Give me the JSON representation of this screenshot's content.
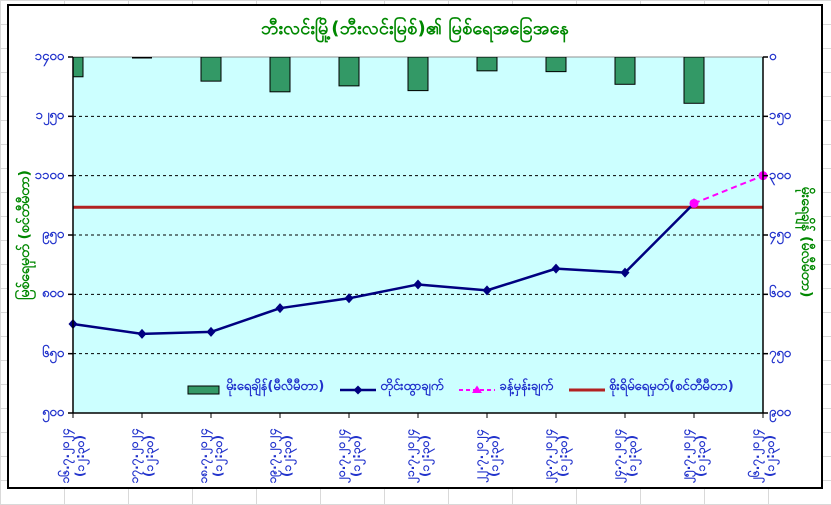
{
  "chart_data": {
    "type": "combo",
    "title": "ဘီးလင်းမြို့(ဘီးလင်းမြစ်)၏ မြစ်ရေအခြေအနေ",
    "title_meaning": "Bilin Town (Bilin River) river water situation",
    "plot_bg": "#CCFFFF",
    "grid": "horizontal-dashed",
    "legend_position": "bottom-inside",
    "categories": [
      {
        "date": "၁၆.၇.၂၀၂၄",
        "time": "(၁၂:၃၀)",
        "latin": "16.7.2024 (12:30)"
      },
      {
        "date": "၁၇.၇.၂၀၂၄",
        "time": "(၁၂:၃၀)",
        "latin": "17.7.2024 (12:30)"
      },
      {
        "date": "၁၈.၇.၂၀၂၄",
        "time": "(၁၂:၃၀)",
        "latin": "18.7.2024 (12:30)"
      },
      {
        "date": "၁၉.၇.၂၀၂၄",
        "time": "(၁၂:၃၀)",
        "latin": "19.7.2024 (12:30)"
      },
      {
        "date": "၂၀.၇.၂၀၂၄",
        "time": "(၁၂:၃၀)",
        "latin": "20.7.2024 (12:30)"
      },
      {
        "date": "၂၁.၇.၂၀၂၄",
        "time": "(၁၂:၃၀)",
        "latin": "21.7.2024 (12:30)"
      },
      {
        "date": "၂၂.၇.၂၀၂၄",
        "time": "(၁၂:၃၀)",
        "latin": "22.7.2024 (12:30)"
      },
      {
        "date": "၂၃.၇.၂၀၂၄",
        "time": "(၁၂:၃၀)",
        "latin": "23.7.2024 (12:30)"
      },
      {
        "date": "၂၄.၇.၂၀၂၄",
        "time": "(၁၂:၃၀)",
        "latin": "24.7.2024 (12:30)"
      },
      {
        "date": "၂၅.၇.၂၀၂၄",
        "time": "(၁၂:၃၀)",
        "latin": "25.7.2024 (12:30)"
      },
      {
        "date": "၂၆.၇.၂၀၂၄",
        "time": "(၁၂:၃၀)",
        "latin": "26.7.2024 (12:30)"
      }
    ],
    "left_axis": {
      "title": "မြစ်ရေမှတ် (စင်တီမီတာ)",
      "title_meaning": "Water level (centimetre)",
      "min": 500,
      "max": 1400,
      "tick_step": 150,
      "tick_values": [
        1400,
        1250,
        1100,
        950,
        800,
        650,
        500
      ],
      "tick_labels": [
        "၁၄၀၀",
        "၁၂၅၀",
        "၁၁၀၀",
        "၉၅၀",
        "၈၀၀",
        "၆၅၀",
        "၅၀၀"
      ]
    },
    "right_axis": {
      "title": "မိုးရေချိန် (မီလီမီတာ)",
      "title_meaning": "Rainfall (millimetre)",
      "min": 0,
      "max": 900,
      "tick_step": 150,
      "reversed": true,
      "tick_values": [
        0,
        150,
        300,
        450,
        600,
        750,
        900
      ],
      "tick_labels": [
        "၀",
        "၁၅၀",
        "၃၀၀",
        "၄၅၀",
        "၆၀၀",
        "၇၅၀",
        "၉၀၀"
      ]
    },
    "series": [
      {
        "name": "မိုးရေချိန်(မီလီမီတာ)",
        "type": "bar",
        "axis": "right",
        "color": "#339966",
        "border": "#000000",
        "values": [
          50,
          0,
          61,
          88,
          73,
          85,
          35,
          37,
          69,
          117,
          null
        ]
      },
      {
        "name": "တိုင်းထွာချက်",
        "type": "line",
        "axis": "left",
        "color": "#000080",
        "marker": "diamond",
        "values": [
          725,
          700,
          705,
          765,
          790,
          825,
          810,
          865,
          855,
          1030,
          null
        ]
      },
      {
        "name": "ခန့်မှန်းချက်",
        "type": "line",
        "axis": "left",
        "color": "#FF00FF",
        "style": "dashed",
        "marker": "circle",
        "legend_marker": "triangle",
        "values": [
          null,
          null,
          null,
          null,
          null,
          null,
          null,
          null,
          null,
          1030,
          1100
        ]
      },
      {
        "name": "စိုးရိမ်ရေမှတ်(စင်တီမီတာ)",
        "type": "hline",
        "axis": "left",
        "color": "#B22222",
        "value": 1020
      }
    ],
    "text_colors": {
      "ticks": "#2233CC",
      "titles": "#008800"
    }
  }
}
